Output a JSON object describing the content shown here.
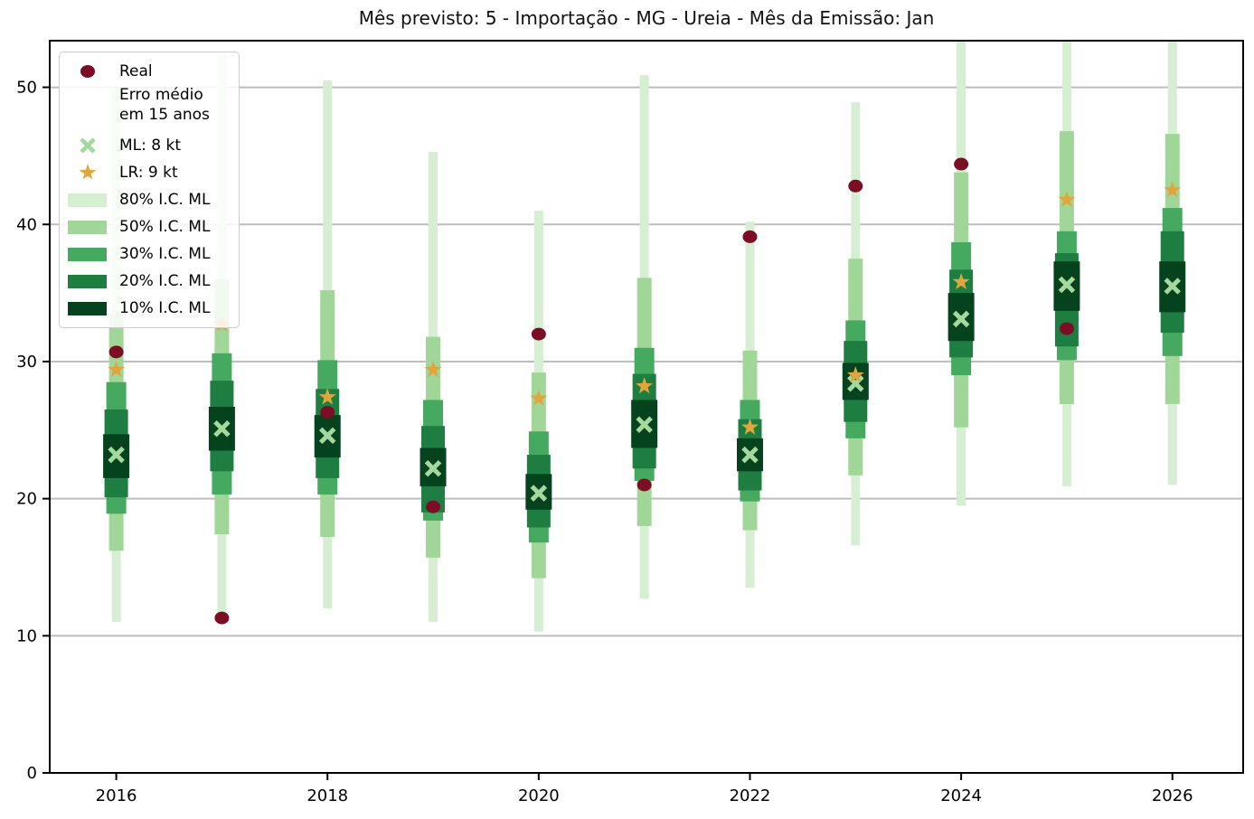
{
  "title": "Mês previsto: 5 - Importação - MG - Ureia - Mês da Emissão: Jan",
  "colors": {
    "real": "#7b0d24",
    "ml": "#a5d89d",
    "lr": "#e0a63c",
    "p80": "#d6eed1",
    "p50": "#a0d698",
    "p30": "#46a960",
    "p20": "#1e7d40",
    "p10": "#05421e",
    "grid": "#bdbdbd",
    "spine": "#000000"
  },
  "legend": {
    "items": [
      {
        "label": "Real",
        "marker": "dot"
      },
      {
        "label": "Erro médio\nem 15 anos",
        "marker": "none"
      },
      {
        "label": "ML: 8 kt",
        "marker": "x"
      },
      {
        "label": "LR: 9 kt",
        "marker": "star"
      },
      {
        "label": "80% I.C. ML",
        "marker": "patch-p80"
      },
      {
        "label": "50% I.C. ML",
        "marker": "patch-p50"
      },
      {
        "label": "30% I.C. ML",
        "marker": "patch-p30"
      },
      {
        "label": "20% I.C. ML",
        "marker": "patch-p20"
      },
      {
        "label": "10% I.C. ML",
        "marker": "patch-p10"
      }
    ]
  },
  "chart_data": {
    "type": "interval-fan",
    "title": "Mês previsto: 5 - Importação - MG - Ureia - Mês da Emissão: Jan",
    "xlabel": "",
    "ylabel": "",
    "x": [
      2016,
      2017,
      2018,
      2019,
      2020,
      2021,
      2022,
      2023,
      2024,
      2025,
      2026
    ],
    "x_ticks": [
      2016,
      2018,
      2020,
      2022,
      2024,
      2026
    ],
    "y_ticks": [
      0,
      10,
      20,
      30,
      40,
      50
    ],
    "xlim": [
      2015.37,
      2026.67
    ],
    "ylim": [
      0,
      53.4
    ],
    "grid": "horizontal",
    "legend_position": "upper-left",
    "series_real_name": "Real",
    "real": [
      30.7,
      11.3,
      26.3,
      19.4,
      32.0,
      21.0,
      39.1,
      42.8,
      44.4,
      32.4,
      null
    ],
    "ml": [
      23.2,
      25.1,
      24.6,
      22.2,
      20.4,
      25.4,
      23.2,
      28.4,
      33.1,
      35.6,
      35.5
    ],
    "lr": [
      29.4,
      32.7,
      27.4,
      29.4,
      27.3,
      28.2,
      25.2,
      29.0,
      35.8,
      41.8,
      42.5
    ],
    "intervals": {
      "p80": [
        [
          11.0,
          49.7
        ],
        [
          11.7,
          52.3
        ],
        [
          12.0,
          50.5
        ],
        [
          11.0,
          45.3
        ],
        [
          10.3,
          41.0
        ],
        [
          12.7,
          50.9
        ],
        [
          13.5,
          40.2
        ],
        [
          16.6,
          48.9
        ],
        [
          19.5,
          54.5
        ],
        [
          20.9,
          54.5
        ],
        [
          21.0,
          54.5
        ]
      ],
      "p50": [
        [
          16.2,
          33.5
        ],
        [
          17.4,
          36.0
        ],
        [
          17.2,
          35.2
        ],
        [
          15.7,
          31.8
        ],
        [
          14.2,
          29.2
        ],
        [
          18.0,
          36.1
        ],
        [
          17.7,
          30.8
        ],
        [
          21.7,
          37.5
        ],
        [
          25.2,
          43.8
        ],
        [
          26.9,
          46.8
        ],
        [
          26.9,
          46.6
        ]
      ],
      "p30": [
        [
          18.9,
          28.5
        ],
        [
          20.3,
          30.6
        ],
        [
          20.3,
          30.1
        ],
        [
          18.4,
          27.2
        ],
        [
          16.8,
          24.9
        ],
        [
          21.3,
          31.0
        ],
        [
          19.8,
          27.2
        ],
        [
          24.4,
          33.0
        ],
        [
          29.0,
          38.7
        ],
        [
          30.1,
          39.5
        ],
        [
          30.4,
          41.2
        ]
      ],
      "p20": [
        [
          20.1,
          26.5
        ],
        [
          22.0,
          28.6
        ],
        [
          21.5,
          28.0
        ],
        [
          19.0,
          25.3
        ],
        [
          17.9,
          23.2
        ],
        [
          22.2,
          29.1
        ],
        [
          20.6,
          25.8
        ],
        [
          25.6,
          31.5
        ],
        [
          30.3,
          36.7
        ],
        [
          31.1,
          37.9
        ],
        [
          32.1,
          39.5
        ]
      ],
      "p10": [
        [
          21.5,
          24.7
        ],
        [
          23.5,
          26.7
        ],
        [
          23.0,
          26.1
        ],
        [
          20.9,
          23.7
        ],
        [
          19.2,
          21.8
        ],
        [
          23.7,
          27.2
        ],
        [
          22.0,
          24.4
        ],
        [
          27.2,
          29.9
        ],
        [
          31.5,
          35.0
        ],
        [
          33.7,
          37.3
        ],
        [
          33.6,
          37.3
        ]
      ]
    }
  }
}
